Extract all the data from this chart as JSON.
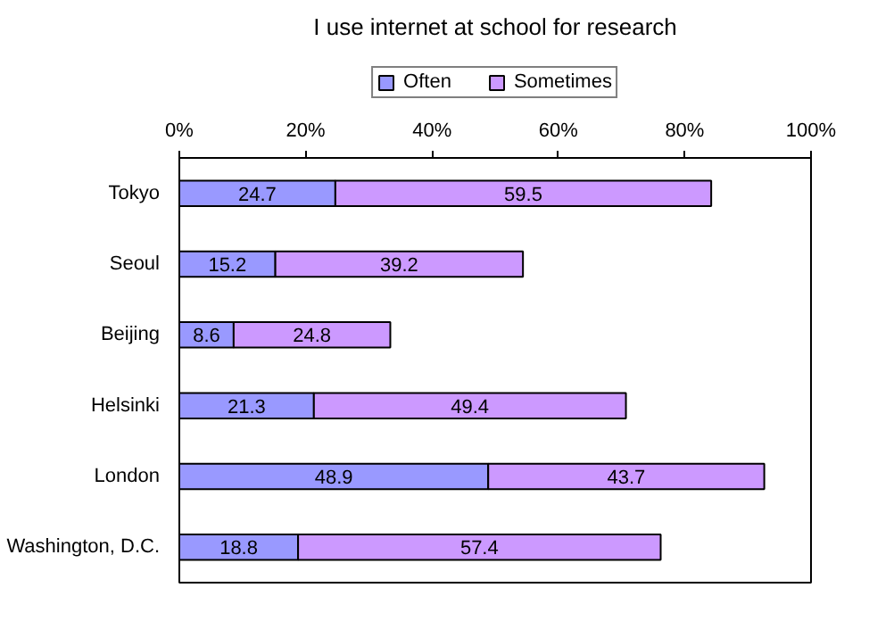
{
  "chart_data": {
    "type": "bar",
    "orientation": "horizontal",
    "stacked": true,
    "title": "I use internet at school for research",
    "categories": [
      "Tokyo",
      "Seoul",
      "Beijing",
      "Helsinki",
      "London",
      "Washington, D.C."
    ],
    "series": [
      {
        "name": "Often",
        "color": "#9999ff",
        "values": [
          24.7,
          15.2,
          8.6,
          21.3,
          48.9,
          18.8
        ]
      },
      {
        "name": "Sometimes",
        "color": "#cc99ff",
        "values": [
          59.5,
          39.2,
          24.8,
          49.4,
          43.7,
          57.4
        ]
      }
    ],
    "xlim": [
      0,
      100
    ],
    "xticks": [
      {
        "value": 0,
        "label": "0%"
      },
      {
        "value": 20,
        "label": "20%"
      },
      {
        "value": 40,
        "label": "40%"
      },
      {
        "value": 60,
        "label": "60%"
      },
      {
        "value": 80,
        "label": "80%"
      },
      {
        "value": 100,
        "label": "100%"
      }
    ],
    "data_labels": true,
    "legend": "top",
    "grid": false
  }
}
